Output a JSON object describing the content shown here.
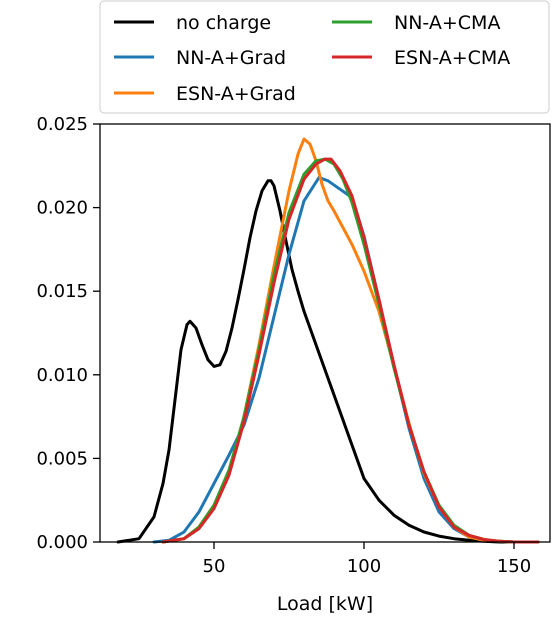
{
  "chart_data": {
    "type": "line",
    "title": "",
    "xlabel": "Load [kW]",
    "ylabel": "",
    "xlim": [
      12,
      162
    ],
    "ylim": [
      0,
      0.025
    ],
    "xticks": [
      50,
      100,
      150
    ],
    "xtick_labels": [
      "50",
      "100",
      "150"
    ],
    "yticks": [
      0,
      0.005,
      0.01,
      0.015,
      0.02,
      0.025
    ],
    "ytick_labels": [
      "0.000",
      "0.005",
      "0.010",
      "0.015",
      "0.020",
      "0.025"
    ],
    "grid": false,
    "legend_placement": "top, above plot",
    "series": [
      {
        "name": "no charge",
        "color": "#000000",
        "x": [
          18,
          25,
          30,
          33,
          35,
          37,
          39,
          41,
          42,
          44,
          46,
          48,
          50,
          52,
          54,
          56,
          58,
          60,
          62,
          64,
          66,
          68,
          69,
          70,
          72,
          74,
          76,
          78,
          80,
          85,
          90,
          95,
          100,
          105,
          110,
          115,
          120,
          125,
          130,
          135,
          140,
          145,
          150,
          155
        ],
        "y": [
          0.0,
          0.0002,
          0.0015,
          0.0035,
          0.0055,
          0.0085,
          0.0115,
          0.013,
          0.0132,
          0.0128,
          0.0118,
          0.0109,
          0.0105,
          0.0106,
          0.0114,
          0.0128,
          0.0145,
          0.0163,
          0.0182,
          0.0198,
          0.021,
          0.0216,
          0.0216,
          0.0213,
          0.0198,
          0.018,
          0.0163,
          0.015,
          0.0138,
          0.0113,
          0.0088,
          0.0063,
          0.0038,
          0.0025,
          0.0016,
          0.001,
          0.0006,
          0.00035,
          0.0002,
          0.0001,
          5e-05,
          0.0,
          0.0,
          0.0
        ]
      },
      {
        "name": "NN-A+Grad",
        "color": "#1f77b4",
        "x": [
          30,
          35,
          40,
          45,
          50,
          55,
          60,
          65,
          70,
          75,
          80,
          85,
          88,
          92,
          96,
          100,
          105,
          110,
          115,
          120,
          125,
          130,
          135,
          140,
          145,
          150,
          155,
          158
        ],
        "y": [
          0.0,
          0.0001,
          0.0006,
          0.0018,
          0.0035,
          0.0052,
          0.007,
          0.0098,
          0.0135,
          0.0172,
          0.0204,
          0.0218,
          0.0216,
          0.0211,
          0.0206,
          0.0183,
          0.0145,
          0.0105,
          0.0068,
          0.0038,
          0.0018,
          0.0008,
          0.0003,
          0.0001,
          4e-05,
          0.0,
          0.0,
          0.0
        ]
      },
      {
        "name": "ESN-A+Grad",
        "color": "#ff7f0e",
        "x": [
          33,
          40,
          45,
          50,
          55,
          60,
          65,
          70,
          75,
          78,
          80,
          82,
          84,
          86,
          88,
          90,
          93,
          96,
          100,
          105,
          110,
          115,
          120,
          125,
          130,
          135,
          140,
          145,
          150,
          155,
          158
        ],
        "y": [
          0.0,
          0.0002,
          0.0009,
          0.0022,
          0.0042,
          0.0075,
          0.0118,
          0.0165,
          0.021,
          0.0232,
          0.0241,
          0.0238,
          0.0228,
          0.0214,
          0.0204,
          0.0198,
          0.0188,
          0.0178,
          0.0162,
          0.0138,
          0.0105,
          0.0071,
          0.0041,
          0.0021,
          0.0009,
          0.0003,
          0.0001,
          4e-05,
          0.0,
          0.0,
          0.0
        ]
      },
      {
        "name": "NN-A+CMA",
        "color": "#2ca02c",
        "x": [
          33,
          40,
          45,
          50,
          55,
          60,
          65,
          70,
          75,
          80,
          84,
          87,
          90,
          93,
          96,
          100,
          105,
          110,
          115,
          120,
          125,
          130,
          135,
          140,
          145,
          150,
          155,
          158
        ],
        "y": [
          0.0,
          0.0002,
          0.0009,
          0.0022,
          0.0043,
          0.0075,
          0.0115,
          0.016,
          0.0197,
          0.022,
          0.0228,
          0.0229,
          0.0226,
          0.0217,
          0.0203,
          0.0178,
          0.0142,
          0.0104,
          0.007,
          0.0042,
          0.0022,
          0.001,
          0.0004,
          0.00015,
          5e-05,
          0.0,
          0.0,
          0.0
        ]
      },
      {
        "name": "ESN-A+CMA",
        "color": "#d62728",
        "x": [
          33,
          40,
          45,
          50,
          55,
          60,
          65,
          70,
          75,
          80,
          84,
          87,
          89,
          92,
          96,
          100,
          105,
          110,
          115,
          120,
          125,
          130,
          135,
          140,
          145,
          150,
          155,
          158
        ],
        "y": [
          0.0,
          0.0002,
          0.0008,
          0.002,
          0.004,
          0.0072,
          0.0112,
          0.0155,
          0.0193,
          0.0217,
          0.0226,
          0.0229,
          0.0229,
          0.0222,
          0.0207,
          0.0182,
          0.0145,
          0.0106,
          0.007,
          0.0042,
          0.0021,
          0.0009,
          0.0004,
          0.00015,
          5e-05,
          0.0,
          0.0,
          0.0
        ]
      }
    ]
  }
}
